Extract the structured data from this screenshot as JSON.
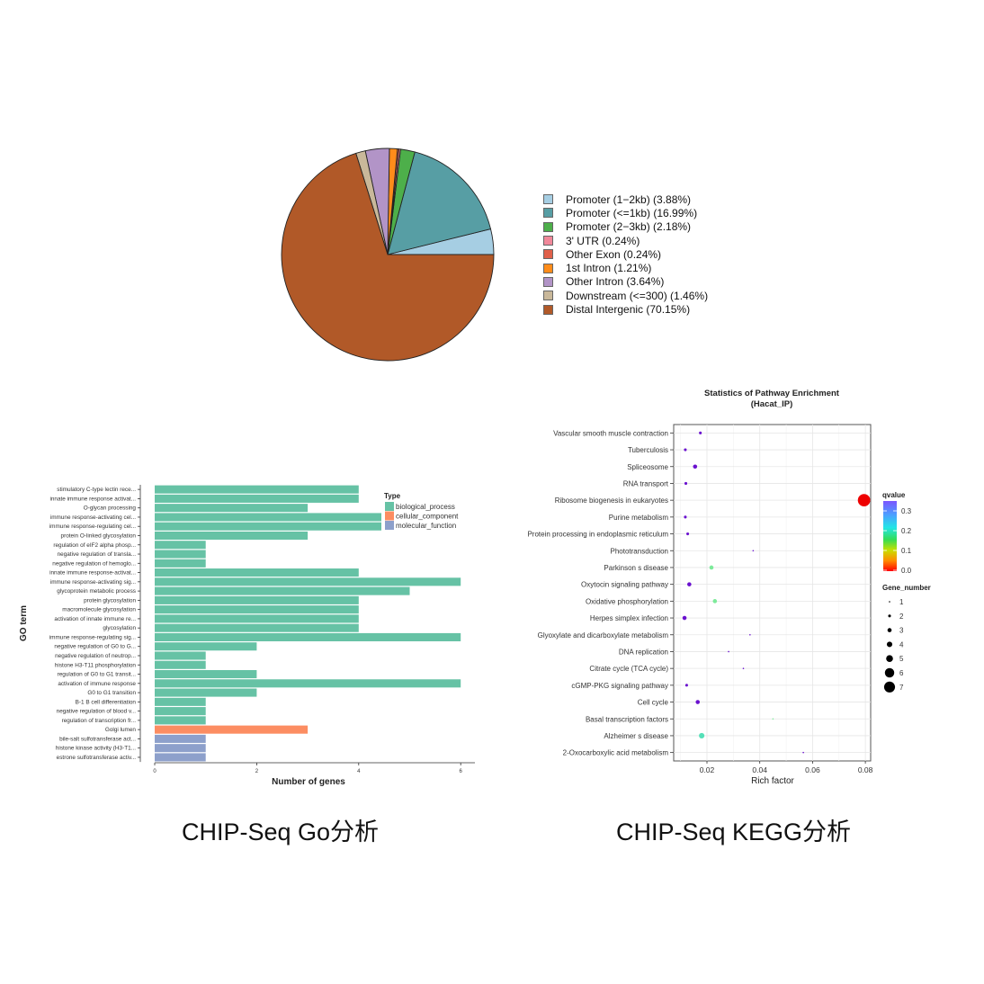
{
  "chart_data": [
    {
      "type": "pie",
      "title": "",
      "start_angle_deg": 0,
      "direction": "counterclockwise",
      "legend_position": "right",
      "slices": [
        {
          "label": "Promoter (1−2kb) (3.88%)",
          "name": "Promoter (1-2kb)",
          "value": 3.88,
          "color": "#a6cee3"
        },
        {
          "label": "Promoter (<=1kb) (16.99%)",
          "name": "Promoter (<=1kb)",
          "value": 16.99,
          "color": "#579ea4"
        },
        {
          "label": "Promoter (2−3kb) (2.18%)",
          "name": "Promoter (2-3kb)",
          "value": 2.18,
          "color": "#4daf4a"
        },
        {
          "label": "3' UTR (0.24%)",
          "name": "3' UTR",
          "value": 0.24,
          "color": "#f1889a"
        },
        {
          "label": "Other Exon (0.24%)",
          "name": "Other Exon",
          "value": 0.24,
          "color": "#e0604a"
        },
        {
          "label": "1st Intron (1.21%)",
          "name": "1st Intron",
          "value": 1.21,
          "color": "#ff8c1a"
        },
        {
          "label": "Other Intron (3.64%)",
          "name": "Other Intron",
          "value": 3.64,
          "color": "#b294c7"
        },
        {
          "label": "Downstream (<=300) (1.46%)",
          "name": "Downstream (<=300)",
          "value": 1.46,
          "color": "#c9b89a"
        },
        {
          "label": "Distal Intergenic (70.15%)",
          "name": "Distal Intergenic",
          "value": 70.15,
          "color": "#b15928"
        }
      ]
    },
    {
      "type": "bar",
      "orientation": "horizontal",
      "title": "",
      "xlabel": "Number of genes",
      "ylabel": "GO term",
      "xlim": [
        0,
        6.3
      ],
      "xticks": [
        "0",
        "2",
        "4",
        "6"
      ],
      "legend_title": "Type",
      "legend_position": "top-right",
      "legend": [
        {
          "label": "biological_process",
          "color": "#66c2a5"
        },
        {
          "label": "cellular_component",
          "color": "#fc8d62"
        },
        {
          "label": "molecular_function",
          "color": "#8da0cb"
        }
      ],
      "categories": [
        "stimulatory C-type lectin rece...",
        "innate immune response activat...",
        "O-glycan processing",
        "immune response-activating cel...",
        "immune response-regulating cel...",
        "protein O-linked glycosylation",
        "regulation of eIF2 alpha phosp...",
        "negative regulation of transla...",
        "negative regulation of hemoglo...",
        "innate immune response-activat...",
        "immune response-activating sig...",
        "glycoprotein metabolic process",
        "protein glycosylation",
        "macromolecule glycosylation",
        "activation of innate immune re...",
        "glycosylation",
        "immune response-regulating sig...",
        "negative regulation of G0 to G...",
        "negative regulation of neutrop...",
        "histone H3-T11 phosphorylation",
        "regulation of G0 to G1 transit...",
        "activation of immune response",
        "G0 to G1 transition",
        "B-1 B cell differentiation",
        "negative regulation of blood v...",
        "regulation of transcription fr...",
        "Golgi lumen",
        "bile-salt sulfotransferase act...",
        "histone kinase activity (H3-T1...",
        "estrone sulfotransferase activ..."
      ],
      "values": [
        4,
        4,
        3,
        5,
        5,
        3,
        1,
        1,
        1,
        4,
        6,
        5,
        4,
        4,
        4,
        4,
        6,
        2,
        1,
        1,
        2,
        6,
        2,
        1,
        1,
        1,
        3,
        1,
        1,
        1
      ],
      "types": [
        "biological_process",
        "biological_process",
        "biological_process",
        "biological_process",
        "biological_process",
        "biological_process",
        "biological_process",
        "biological_process",
        "biological_process",
        "biological_process",
        "biological_process",
        "biological_process",
        "biological_process",
        "biological_process",
        "biological_process",
        "biological_process",
        "biological_process",
        "biological_process",
        "biological_process",
        "biological_process",
        "biological_process",
        "biological_process",
        "biological_process",
        "biological_process",
        "biological_process",
        "biological_process",
        "cellular_component",
        "molecular_function",
        "molecular_function",
        "molecular_function"
      ]
    },
    {
      "type": "scatter",
      "title": "Statistics of Pathway Enrichment",
      "subtitle": "(Hacat_IP)",
      "xlabel": "Rich factor",
      "ylabel": "",
      "xlim": [
        0.0075,
        0.0822
      ],
      "xticks": [
        "0.02",
        "0.04",
        "0.06",
        "0.08"
      ],
      "grid": true,
      "color_legend": {
        "title": "qvalue",
        "ticks": [
          "0.3",
          "0.2",
          "0.1",
          "0.0"
        ],
        "range": [
          0.0,
          0.35
        ]
      },
      "size_legend": {
        "title": "Gene_number",
        "values": [
          "1",
          "2",
          "3",
          "4",
          "5",
          "6",
          "7"
        ]
      },
      "points": [
        {
          "pathway": "Vascular smooth muscle contraction",
          "rich_factor": 0.0175,
          "gene_number": 2,
          "qvalue": 0.35
        },
        {
          "pathway": "Tuberculosis",
          "rich_factor": 0.0118,
          "gene_number": 2,
          "qvalue": 0.35
        },
        {
          "pathway": "Spliceosome",
          "rich_factor": 0.0155,
          "gene_number": 3,
          "qvalue": 0.35
        },
        {
          "pathway": "RNA transport",
          "rich_factor": 0.012,
          "gene_number": 2,
          "qvalue": 0.35
        },
        {
          "pathway": "Ribosome biogenesis in eukaryotes",
          "rich_factor": 0.0795,
          "gene_number": 7,
          "qvalue": 0.0
        },
        {
          "pathway": "Purine metabolism",
          "rich_factor": 0.0118,
          "gene_number": 2,
          "qvalue": 0.35
        },
        {
          "pathway": "Protein processing in endoplasmic reticulum",
          "rich_factor": 0.0127,
          "gene_number": 2,
          "qvalue": 0.35
        },
        {
          "pathway": "Phototransduction",
          "rich_factor": 0.0375,
          "gene_number": 1,
          "qvalue": 0.35
        },
        {
          "pathway": "Parkinson s disease",
          "rich_factor": 0.0217,
          "gene_number": 3,
          "qvalue": 0.17
        },
        {
          "pathway": "Oxytocin signaling pathway",
          "rich_factor": 0.0133,
          "gene_number": 3,
          "qvalue": 0.35
        },
        {
          "pathway": "Oxidative phosphorylation",
          "rich_factor": 0.023,
          "gene_number": 3,
          "qvalue": 0.17
        },
        {
          "pathway": "Herpes simplex infection",
          "rich_factor": 0.0115,
          "gene_number": 3,
          "qvalue": 0.35
        },
        {
          "pathway": "Glyoxylate and dicarboxylate metabolism",
          "rich_factor": 0.0363,
          "gene_number": 1,
          "qvalue": 0.35
        },
        {
          "pathway": "DNA replication",
          "rich_factor": 0.0282,
          "gene_number": 1,
          "qvalue": 0.35
        },
        {
          "pathway": "Citrate cycle (TCA cycle)",
          "rich_factor": 0.0338,
          "gene_number": 1,
          "qvalue": 0.35
        },
        {
          "pathway": "cGMP-PKG signaling pathway",
          "rich_factor": 0.0123,
          "gene_number": 2,
          "qvalue": 0.35
        },
        {
          "pathway": "Cell cycle",
          "rich_factor": 0.0165,
          "gene_number": 3,
          "qvalue": 0.35
        },
        {
          "pathway": "Basal transcription factors",
          "rich_factor": 0.045,
          "gene_number": 1,
          "qvalue": 0.17
        },
        {
          "pathway": "Alzheimer s disease",
          "rich_factor": 0.018,
          "gene_number": 4,
          "qvalue": 0.2
        },
        {
          "pathway": "2-Oxocarboxylic acid metabolism",
          "rich_factor": 0.0565,
          "gene_number": 1,
          "qvalue": 0.35
        }
      ]
    }
  ],
  "captions": {
    "go": "CHIP-Seq Go分析",
    "kegg": "CHIP-Seq KEGG分析"
  }
}
